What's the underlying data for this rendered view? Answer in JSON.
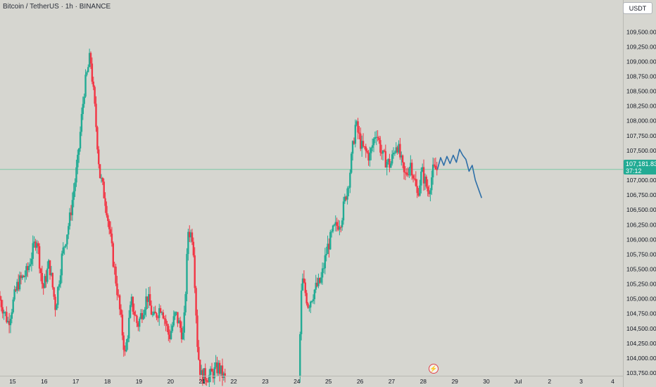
{
  "header": {
    "title": "Bitcoin / TetherUS · 1h · BINANCE",
    "currency_button": "USDT"
  },
  "last_price": {
    "value": "107,181.83",
    "countdown": "37:12",
    "color": "#22ab94"
  },
  "colors": {
    "background": "#d6d6d0",
    "up_candle": "#22ab94",
    "down_candle": "#f23645",
    "projection": "#2e6fa8",
    "price_line": "#7cc8a6"
  },
  "events_icon": "lightning-icon",
  "chart_data": {
    "type": "candlestick",
    "symbol": "BTCUSDT",
    "interval": "1h",
    "grid": false,
    "y_axis": {
      "position": "right",
      "range": [
        103750,
        109800
      ],
      "ticks": [
        "103,750.00",
        "104,000.00",
        "104,250.00",
        "104,500.00",
        "104,750.00",
        "105,000.00",
        "105,250.00",
        "105,500.00",
        "105,750.00",
        "106,000.00",
        "106,250.00",
        "106,500.00",
        "106,750.00",
        "107,000.00",
        "107,250.00",
        "107,500.00",
        "107,750.00",
        "108,000.00",
        "108,250.00",
        "108,500.00",
        "108,750.00",
        "109,000.00",
        "109,250.00",
        "109,500.00"
      ]
    },
    "x_axis": {
      "range_days": [
        14.6,
        34.3
      ],
      "ticks": [
        {
          "day": 15,
          "label": "15"
        },
        {
          "day": 16,
          "label": "16"
        },
        {
          "day": 17,
          "label": "17"
        },
        {
          "day": 18,
          "label": "18"
        },
        {
          "day": 19,
          "label": "19"
        },
        {
          "day": 20,
          "label": "20"
        },
        {
          "day": 21,
          "label": "21"
        },
        {
          "day": 22,
          "label": "22"
        },
        {
          "day": 23,
          "label": "23"
        },
        {
          "day": 24,
          "label": "24"
        },
        {
          "day": 25,
          "label": "25"
        },
        {
          "day": 26,
          "label": "26"
        },
        {
          "day": 27,
          "label": "27"
        },
        {
          "day": 28,
          "label": "28"
        },
        {
          "day": 29,
          "label": "29"
        },
        {
          "day": 30,
          "label": "30"
        },
        {
          "day": 31,
          "label": "Jul"
        },
        {
          "day": 32,
          "label": "2"
        },
        {
          "day": 33,
          "label": "3"
        },
        {
          "day": 34,
          "label": "4"
        }
      ]
    },
    "price_anchors": [
      [
        14.6,
        105050
      ],
      [
        14.9,
        104600
      ],
      [
        15.2,
        105250
      ],
      [
        15.5,
        105450
      ],
      [
        15.8,
        106050
      ],
      [
        16.0,
        105150
      ],
      [
        16.2,
        105600
      ],
      [
        16.4,
        104850
      ],
      [
        16.6,
        105700
      ],
      [
        16.85,
        106350
      ],
      [
        17.1,
        107300
      ],
      [
        17.3,
        108500
      ],
      [
        17.5,
        109100
      ],
      [
        17.65,
        108150
      ],
      [
        17.8,
        107100
      ],
      [
        18.0,
        106600
      ],
      [
        18.2,
        105750
      ],
      [
        18.4,
        104950
      ],
      [
        18.6,
        104050
      ],
      [
        18.8,
        104950
      ],
      [
        19.0,
        104550
      ],
      [
        19.3,
        105050
      ],
      [
        19.5,
        104650
      ],
      [
        19.75,
        104900
      ],
      [
        20.0,
        104350
      ],
      [
        20.2,
        104750
      ],
      [
        20.45,
        104350
      ],
      [
        20.6,
        106150
      ],
      [
        20.75,
        106050
      ],
      [
        20.9,
        104150
      ],
      [
        21.0,
        103700
      ],
      [
        21.3,
        103700
      ],
      [
        21.55,
        103850
      ],
      [
        21.75,
        103650
      ]
    ],
    "price_anchors_2": [
      [
        24.1,
        103700
      ],
      [
        24.2,
        105350
      ],
      [
        24.4,
        104900
      ],
      [
        24.6,
        105150
      ],
      [
        24.8,
        105300
      ],
      [
        25.0,
        105850
      ],
      [
        25.2,
        106150
      ],
      [
        25.45,
        106350
      ],
      [
        25.7,
        107050
      ],
      [
        25.9,
        107950
      ],
      [
        26.1,
        107550
      ],
      [
        26.35,
        107400
      ],
      [
        26.55,
        107850
      ],
      [
        26.75,
        107400
      ],
      [
        27.0,
        107250
      ],
      [
        27.2,
        107650
      ],
      [
        27.45,
        107050
      ],
      [
        27.65,
        107300
      ],
      [
        27.85,
        106750
      ],
      [
        28.0,
        107150
      ],
      [
        28.2,
        106800
      ],
      [
        28.35,
        107150
      ],
      [
        28.45,
        107181.83
      ]
    ],
    "projection": [
      [
        28.45,
        107181.83
      ],
      [
        28.55,
        107380
      ],
      [
        28.65,
        107250
      ],
      [
        28.75,
        107400
      ],
      [
        28.85,
        107280
      ],
      [
        28.95,
        107420
      ],
      [
        29.05,
        107300
      ],
      [
        29.15,
        107520
      ],
      [
        29.25,
        107420
      ],
      [
        29.35,
        107350
      ],
      [
        29.45,
        107150
      ],
      [
        29.55,
        107250
      ],
      [
        29.65,
        107000
      ],
      [
        29.75,
        106850
      ],
      [
        29.85,
        106700
      ]
    ],
    "last_price": 107181.83
  }
}
